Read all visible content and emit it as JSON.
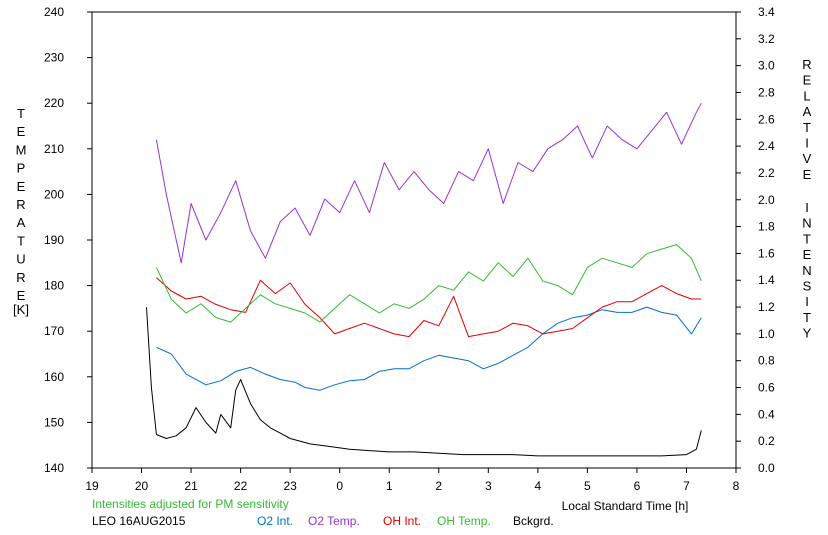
{
  "chart_data": {
    "type": "line",
    "title": "",
    "xlabel": "Local Standard Time [h]",
    "ylabel_left_letters": [
      "T",
      "E",
      "M",
      "P",
      "E",
      "R",
      "A",
      "T",
      "U",
      "R",
      "E"
    ],
    "ylabel_left_unit": "[K]",
    "ylabel_right_words": [
      [
        "R",
        "E",
        "L",
        "A",
        "T",
        "I",
        "V",
        "E"
      ],
      [
        "I",
        "N",
        "T",
        "E",
        "N",
        "S",
        "I",
        "T",
        "Y"
      ]
    ],
    "x_hours": [
      19,
      20,
      21,
      22,
      23,
      24,
      25,
      26,
      27,
      28,
      29,
      30,
      31,
      32
    ],
    "x_tick_labels": [
      "19",
      "20",
      "21",
      "22",
      "23",
      "0",
      "1",
      "2",
      "3",
      "4",
      "5",
      "6",
      "7",
      "8"
    ],
    "y_left_ticks": [
      140,
      150,
      160,
      170,
      180,
      190,
      200,
      210,
      220,
      230,
      240
    ],
    "y_right_ticks": [
      "0.0",
      "0.2",
      "0.4",
      "0.6",
      "0.8",
      "1.0",
      "1.2",
      "1.4",
      "1.6",
      "1.8",
      "2.0",
      "2.2",
      "2.4",
      "2.6",
      "2.8",
      "3.0",
      "3.2",
      "3.4"
    ],
    "ylim_left": [
      140,
      240
    ],
    "ylim_right": [
      0,
      3.4
    ],
    "xlim": [
      19,
      32
    ],
    "grid": false,
    "series": [
      {
        "name": "O2 Int.",
        "color": "#0070d0",
        "axis": "right",
        "x": [
          20.3,
          20.6,
          20.9,
          21.0,
          21.3,
          21.6,
          21.9,
          22.2,
          22.5,
          22.8,
          23.1,
          23.3,
          23.6,
          23.9,
          24.2,
          24.5,
          24.8,
          25.1,
          25.4,
          25.7,
          26.0,
          26.3,
          26.6,
          26.9,
          27.2,
          27.5,
          27.8,
          28.1,
          28.4,
          28.7,
          29.0,
          29.3,
          29.6,
          29.9,
          30.2,
          30.5,
          30.8,
          31.1,
          31.3
        ],
        "y": [
          0.9,
          0.85,
          0.7,
          0.68,
          0.62,
          0.65,
          0.72,
          0.75,
          0.7,
          0.66,
          0.64,
          0.6,
          0.58,
          0.62,
          0.65,
          0.66,
          0.72,
          0.74,
          0.74,
          0.8,
          0.84,
          0.82,
          0.8,
          0.74,
          0.78,
          0.84,
          0.9,
          1.0,
          1.08,
          1.12,
          1.14,
          1.18,
          1.16,
          1.16,
          1.2,
          1.16,
          1.14,
          1.0,
          1.12
        ]
      },
      {
        "name": "O2 Temp.",
        "color": "#9933cc",
        "axis": "left",
        "x": [
          20.3,
          20.5,
          20.8,
          21.0,
          21.3,
          21.6,
          21.9,
          22.2,
          22.5,
          22.8,
          23.1,
          23.4,
          23.7,
          24.0,
          24.3,
          24.6,
          24.9,
          25.2,
          25.5,
          25.8,
          26.1,
          26.4,
          26.7,
          27.0,
          27.3,
          27.6,
          27.9,
          28.2,
          28.5,
          28.8,
          29.1,
          29.4,
          29.7,
          30.0,
          30.3,
          30.6,
          30.9,
          31.2,
          31.3
        ],
        "y": [
          212,
          200,
          185,
          198,
          190,
          196,
          203,
          192,
          186,
          194,
          197,
          191,
          199,
          196,
          203,
          196,
          207,
          201,
          205,
          201,
          198,
          205,
          203,
          210,
          198,
          207,
          205,
          210,
          212,
          215,
          208,
          215,
          212,
          210,
          214,
          218,
          211,
          218,
          220
        ]
      },
      {
        "name": "OH Int.",
        "color": "#e00000",
        "axis": "right",
        "x": [
          20.3,
          20.6,
          20.9,
          21.2,
          21.5,
          21.8,
          22.1,
          22.4,
          22.7,
          23.0,
          23.3,
          23.6,
          23.9,
          24.2,
          24.5,
          24.8,
          25.1,
          25.4,
          25.7,
          26.0,
          26.3,
          26.6,
          26.9,
          27.2,
          27.5,
          27.8,
          28.1,
          28.4,
          28.7,
          29.0,
          29.3,
          29.6,
          29.9,
          30.2,
          30.5,
          30.8,
          31.1,
          31.3
        ],
        "y": [
          1.42,
          1.32,
          1.26,
          1.28,
          1.22,
          1.18,
          1.16,
          1.4,
          1.3,
          1.38,
          1.22,
          1.12,
          1.0,
          1.04,
          1.08,
          1.04,
          1.0,
          0.98,
          1.1,
          1.06,
          1.28,
          0.98,
          1.0,
          1.02,
          1.08,
          1.06,
          1.0,
          1.02,
          1.04,
          1.12,
          1.2,
          1.24,
          1.24,
          1.3,
          1.36,
          1.3,
          1.26,
          1.26
        ]
      },
      {
        "name": "OH Temp.",
        "color": "#33bb33",
        "axis": "left",
        "x": [
          20.3,
          20.6,
          20.9,
          21.2,
          21.5,
          21.8,
          22.1,
          22.4,
          22.7,
          23.0,
          23.3,
          23.6,
          23.9,
          24.2,
          24.5,
          24.8,
          25.1,
          25.4,
          25.7,
          26.0,
          26.3,
          26.6,
          26.9,
          27.2,
          27.5,
          27.8,
          28.1,
          28.4,
          28.7,
          29.0,
          29.3,
          29.6,
          29.9,
          30.2,
          30.5,
          30.8,
          31.1,
          31.3
        ],
        "y": [
          184,
          177,
          174,
          176,
          173,
          172,
          175,
          178,
          176,
          175,
          174,
          172,
          175,
          178,
          176,
          174,
          176,
          175,
          177,
          180,
          179,
          183,
          181,
          185,
          182,
          186,
          181,
          180,
          178,
          184,
          186,
          185,
          184,
          187,
          188,
          189,
          186,
          181
        ]
      },
      {
        "name": "Bckgrd.",
        "color": "#000000",
        "axis": "right",
        "x": [
          20.1,
          20.2,
          20.3,
          20.5,
          20.7,
          20.9,
          21.1,
          21.3,
          21.5,
          21.6,
          21.8,
          21.9,
          22.0,
          22.2,
          22.4,
          22.6,
          22.8,
          23.0,
          23.4,
          23.8,
          24.2,
          24.6,
          25.0,
          25.5,
          26.0,
          26.5,
          27.0,
          27.5,
          28.0,
          28.5,
          29.0,
          29.5,
          30.0,
          30.5,
          31.0,
          31.2,
          31.3
        ],
        "y": [
          1.2,
          0.6,
          0.25,
          0.22,
          0.24,
          0.3,
          0.45,
          0.34,
          0.26,
          0.4,
          0.3,
          0.58,
          0.66,
          0.48,
          0.36,
          0.3,
          0.26,
          0.22,
          0.18,
          0.16,
          0.14,
          0.13,
          0.12,
          0.12,
          0.11,
          0.1,
          0.1,
          0.1,
          0.09,
          0.09,
          0.09,
          0.09,
          0.09,
          0.09,
          0.1,
          0.14,
          0.28
        ]
      }
    ]
  },
  "info": {
    "note": "Intensities adjusted for PM sensitivity",
    "station": "LEO 16AUG2015",
    "legend_o2_int": "O2 Int.",
    "legend_o2_temp": "O2 Temp.",
    "legend_oh_int": "OH Int.",
    "legend_oh_temp": "OH Temp.",
    "legend_bckgrd": "Bckgrd.",
    "colors": {
      "note": "#33bb33",
      "o2_int": "#0070d0",
      "o2_temp": "#9933cc",
      "oh_int": "#e00000",
      "oh_temp": "#33bb33",
      "bckgrd": "#000000"
    }
  }
}
